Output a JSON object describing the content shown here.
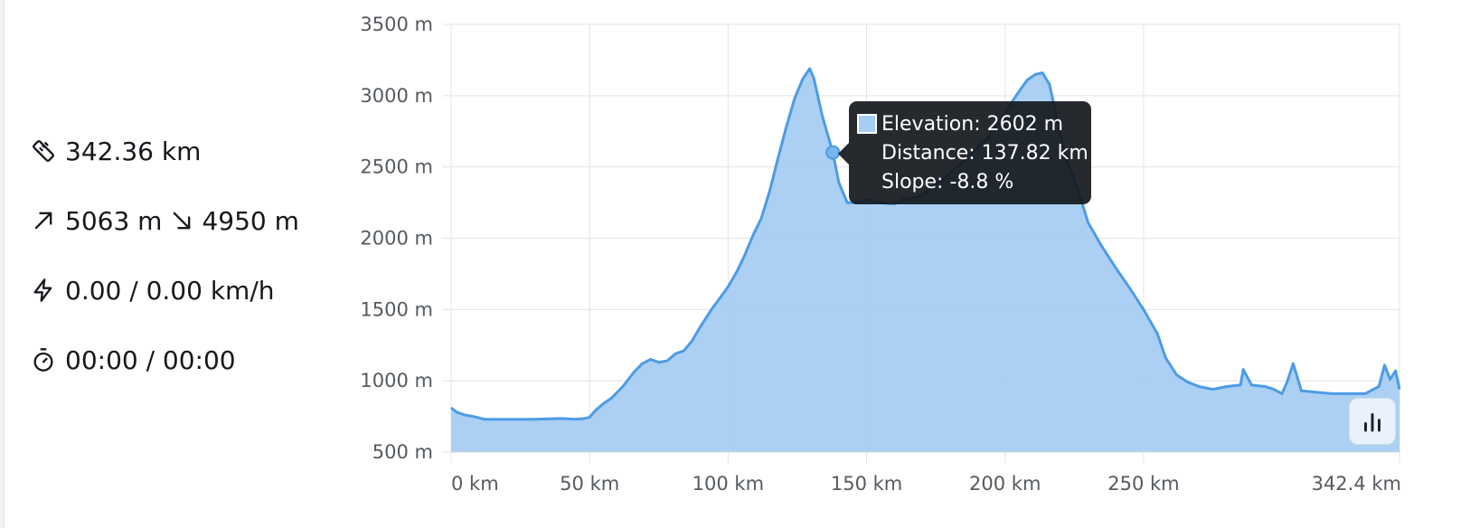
{
  "stats": {
    "distance": "342.36 km",
    "ascent": "5063 m",
    "descent": "4950 m",
    "speed": "0.00 / 0.00 km/h",
    "time": "00:00 / 00:00",
    "icons": [
      "ruler-icon",
      "arrow-up-right-icon",
      "arrow-down-right-icon",
      "lightning-icon",
      "stopwatch-icon"
    ]
  },
  "tooltip": {
    "elevation": "Elevation: 2602 m",
    "distance": "Distance: 137.82 km",
    "slope": "Slope: -8.8 %"
  },
  "colors": {
    "line": "#4d9be6",
    "fill": "#a7cdf2",
    "grid": "#e3e3e3",
    "tooltip_bg": "#14181d"
  },
  "chart_data": {
    "type": "area",
    "title": "",
    "xlabel": "",
    "ylabel": "",
    "xlim": [
      0,
      342.4
    ],
    "ylim": [
      500,
      3500
    ],
    "x_ticks": [
      0,
      50,
      100,
      150,
      200,
      250,
      342.4
    ],
    "x_tick_labels": [
      "0 km",
      "50 km",
      "100 km",
      "150 km",
      "200 km",
      "250 km",
      "342.4 km"
    ],
    "y_ticks": [
      500,
      1000,
      1500,
      2000,
      2500,
      3000,
      3500
    ],
    "y_tick_labels": [
      "500 m",
      "1000 m",
      "1500 m",
      "2000 m",
      "2500 m",
      "3000 m",
      "3500 m"
    ],
    "grid": true,
    "legend": "none",
    "series": [
      {
        "x": [
          0,
          2,
          5,
          8,
          12,
          20,
          30,
          40,
          45,
          48,
          50,
          52,
          55,
          58,
          62,
          66,
          69,
          72,
          75,
          78,
          81,
          84,
          87,
          90,
          94,
          97,
          100,
          103,
          106,
          109,
          112,
          115,
          118,
          121,
          124,
          127,
          129.5,
          131,
          134,
          137.82,
          140,
          143,
          146,
          150,
          155,
          160,
          163,
          170,
          178,
          186,
          194,
          200,
          204,
          208,
          211,
          213.5,
          216,
          219,
          222,
          226,
          230,
          235,
          240,
          245,
          250,
          255,
          258,
          262,
          266,
          270,
          275,
          280,
          285,
          286,
          289,
          294,
          297,
          300,
          302,
          304,
          307,
          312,
          318,
          325,
          330,
          333,
          335,
          337,
          339,
          341,
          342.4
        ],
        "y": [
          810,
          780,
          760,
          750,
          730,
          730,
          730,
          735,
          730,
          735,
          745,
          790,
          840,
          880,
          960,
          1060,
          1120,
          1150,
          1130,
          1140,
          1190,
          1210,
          1280,
          1380,
          1500,
          1580,
          1660,
          1760,
          1880,
          2020,
          2140,
          2330,
          2560,
          2780,
          2980,
          3120,
          3190,
          3120,
          2860,
          2602,
          2390,
          2250,
          2250,
          2270,
          2250,
          2240,
          2270,
          2300,
          2420,
          2560,
          2710,
          2880,
          3000,
          3110,
          3150,
          3160,
          3080,
          2820,
          2560,
          2360,
          2110,
          1940,
          1790,
          1650,
          1500,
          1330,
          1160,
          1040,
          990,
          960,
          940,
          960,
          970,
          1080,
          970,
          960,
          940,
          910,
          1000,
          1120,
          930,
          920,
          910,
          910,
          910,
          940,
          960,
          1110,
          1010,
          1070,
          940
        ]
      }
    ],
    "highlight": {
      "x": 137.82,
      "y": 2602
    }
  }
}
